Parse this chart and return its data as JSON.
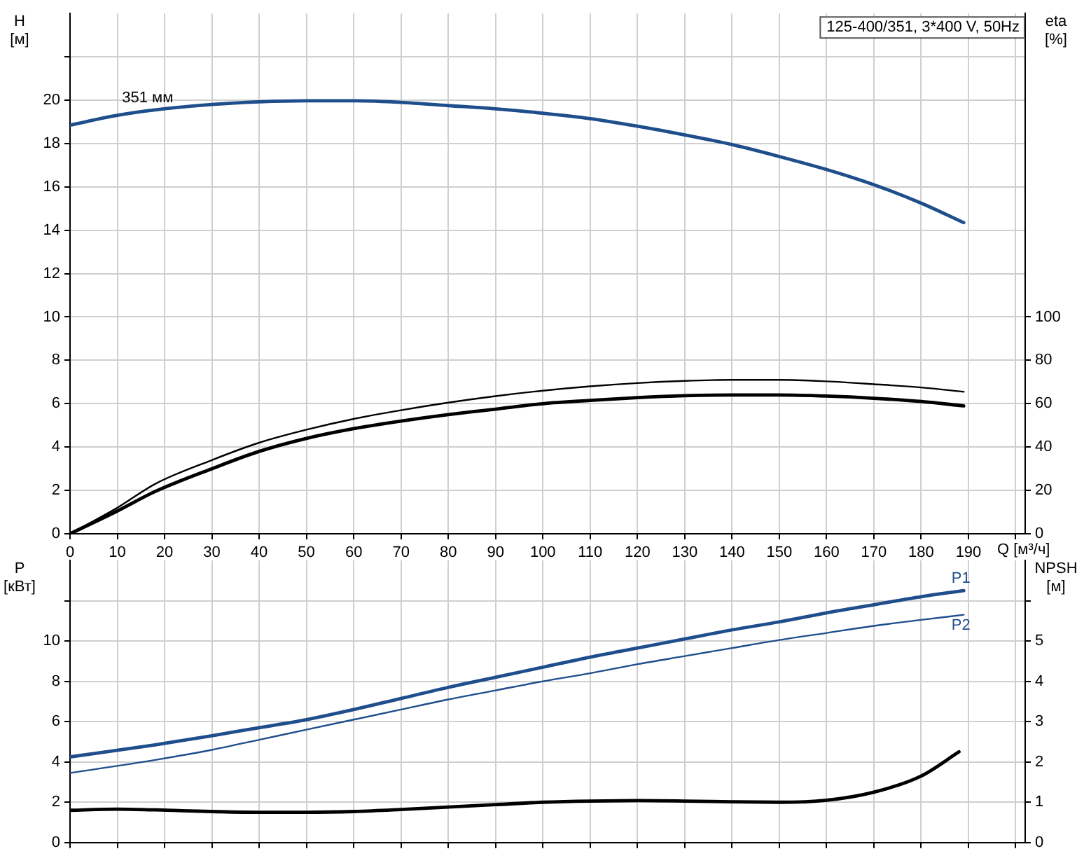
{
  "chart_data": [
    {
      "type": "line",
      "title": "125-400/351, 3*400 V, 50Hz",
      "xlabel": "Q [м³/ч]",
      "ylabel": "H [м]",
      "y2label": "eta [%]",
      "xlim": [
        0,
        202
      ],
      "xticks": [
        0,
        10,
        20,
        30,
        40,
        50,
        60,
        70,
        80,
        90,
        100,
        110,
        120,
        130,
        140,
        150,
        160,
        170,
        180,
        190,
        {
          "value": 200,
          "label": null
        }
      ],
      "ylim": [
        0,
        24
      ],
      "yticks": [
        0,
        2,
        4,
        6,
        8,
        10,
        12,
        14,
        16,
        18,
        20,
        {
          "value": 22,
          "label": null
        }
      ],
      "y2lim": [
        0,
        240
      ],
      "y2ticks": [
        0,
        20,
        40,
        60,
        80,
        100
      ],
      "grid": true,
      "legend": false,
      "marker": "none",
      "annotations": [
        {
          "text": "351 мм",
          "x": 11,
          "y": 19.6
        }
      ],
      "series": [
        {
          "color": "#1f4e8c",
          "x": [
            0,
            10,
            18,
            30,
            40,
            50,
            60,
            70,
            80,
            90,
            100,
            110,
            120,
            130,
            140,
            150,
            160,
            170,
            180,
            189
          ],
          "values": [
            18.85,
            19.3,
            19.55,
            19.8,
            19.92,
            19.97,
            19.97,
            19.9,
            19.75,
            19.6,
            19.4,
            19.15,
            18.8,
            18.4,
            17.95,
            17.4,
            16.8,
            16.1,
            15.25,
            14.35
          ]
        },
        {
          "color": "#000000",
          "axis": "y2",
          "x": [
            0,
            10,
            18,
            30,
            40,
            50,
            60,
            70,
            80,
            90,
            100,
            110,
            120,
            130,
            140,
            150,
            160,
            170,
            180,
            189
          ],
          "values": [
            0,
            12,
            23,
            34,
            42,
            48,
            53,
            57,
            60.5,
            63.5,
            66,
            68,
            69.5,
            70.5,
            71,
            71,
            70.3,
            69,
            67.5,
            65.5
          ]
        },
        {
          "color": "#000000",
          "axis": "y2",
          "x": [
            0,
            10,
            18,
            30,
            40,
            50,
            60,
            70,
            80,
            90,
            100,
            110,
            120,
            130,
            140,
            150,
            160,
            170,
            180,
            189
          ],
          "values": [
            0,
            10.5,
            19.5,
            30,
            38,
            44,
            48.5,
            52,
            55,
            57.5,
            60,
            61.5,
            62.8,
            63.7,
            64,
            64,
            63.5,
            62.5,
            61,
            59
          ]
        }
      ]
    },
    {
      "type": "line",
      "ylabel": "P [кВт]",
      "y2label": "NPSH [м]",
      "xlim": [
        0,
        202
      ],
      "xticks": [
        0,
        10,
        20,
        30,
        40,
        50,
        60,
        70,
        80,
        90,
        100,
        110,
        120,
        130,
        140,
        150,
        160,
        170,
        180,
        190,
        200
      ],
      "ylim": [
        0,
        14
      ],
      "yticks": [
        0,
        2,
        4,
        6,
        8,
        10,
        {
          "value": 12,
          "label": null
        }
      ],
      "y2lim": [
        0,
        7
      ],
      "y2ticks": [
        0,
        1,
        2,
        3,
        4,
        5,
        {
          "value": 6,
          "label": null
        }
      ],
      "tick_labels": "y",
      "grid": true,
      "legend": false,
      "marker": "none",
      "series": [
        {
          "name": "P1",
          "color": "#1f4e8c",
          "x": [
            0,
            18,
            30,
            40,
            50,
            60,
            70,
            80,
            90,
            100,
            110,
            120,
            130,
            140,
            150,
            160,
            170,
            180,
            189
          ],
          "values": [
            4.25,
            4.85,
            5.3,
            5.7,
            6.1,
            6.6,
            7.15,
            7.7,
            8.2,
            8.7,
            9.2,
            9.65,
            10.1,
            10.55,
            10.95,
            11.4,
            11.8,
            12.2,
            12.5
          ]
        },
        {
          "name": "P2",
          "color": "#1f4e8c",
          "x": [
            0,
            18,
            30,
            40,
            50,
            60,
            70,
            80,
            90,
            100,
            110,
            120,
            130,
            140,
            150,
            160,
            170,
            180,
            189
          ],
          "values": [
            3.45,
            4.1,
            4.6,
            5.1,
            5.6,
            6.1,
            6.6,
            7.1,
            7.55,
            8,
            8.4,
            8.85,
            9.25,
            9.65,
            10.05,
            10.4,
            10.75,
            11.05,
            11.3
          ]
        },
        {
          "color": "#000000",
          "axis": "y2",
          "x": [
            0,
            10,
            18,
            30,
            40,
            50,
            60,
            70,
            80,
            90,
            100,
            110,
            120,
            130,
            140,
            150,
            160,
            170,
            180,
            188
          ],
          "values": [
            0.8,
            0.83,
            0.81,
            0.77,
            0.75,
            0.75,
            0.77,
            0.82,
            0.88,
            0.94,
            1,
            1.03,
            1.04,
            1.03,
            1.01,
            1,
            1.05,
            1.25,
            1.65,
            2.25
          ]
        }
      ]
    }
  ]
}
